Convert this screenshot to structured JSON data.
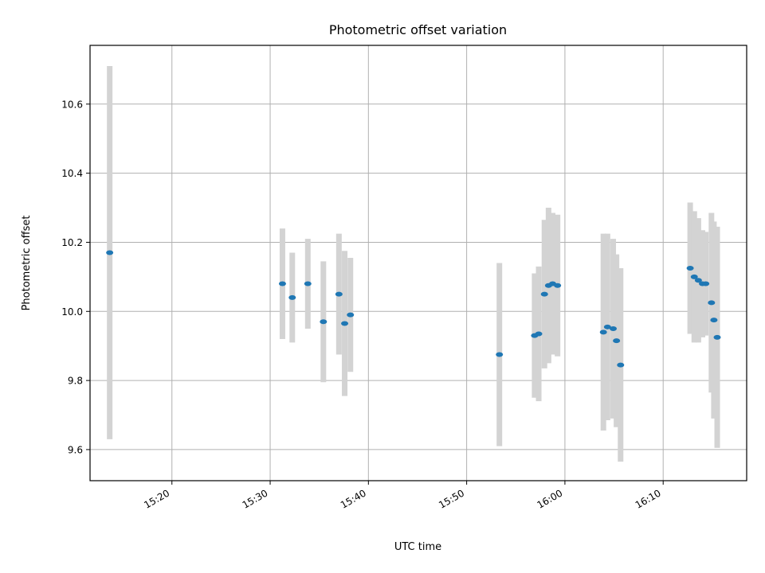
{
  "chart_data": {
    "type": "scatter",
    "title": "Photometric offset variation",
    "xlabel": "UTC time",
    "ylabel": "Photometric offset",
    "x_ticks": [
      "15:20",
      "15:30",
      "15:40",
      "15:50",
      "16:00",
      "16:10"
    ],
    "y_ticks": [
      "9.6",
      "9.8",
      "10.0",
      "10.2",
      "10.4",
      "10.6"
    ],
    "xlim": [
      "15:11:40",
      "16:18:30"
    ],
    "ylim": [
      9.51,
      10.77
    ],
    "grid": true,
    "marker_color": "#1f77b4",
    "errorbar_color": "#d3d3d3",
    "points": [
      {
        "t": "15:13:40",
        "y": 10.17,
        "err": 0.54
      },
      {
        "t": "15:31:15",
        "y": 10.08,
        "err": 0.16
      },
      {
        "t": "15:32:15",
        "y": 10.04,
        "err": 0.13
      },
      {
        "t": "15:33:50",
        "y": 10.08,
        "err": 0.13
      },
      {
        "t": "15:35:25",
        "y": 9.97,
        "err": 0.175
      },
      {
        "t": "15:37:00",
        "y": 10.05,
        "err": 0.175
      },
      {
        "t": "15:37:35",
        "y": 9.965,
        "err": 0.21
      },
      {
        "t": "15:38:10",
        "y": 9.99,
        "err": 0.165
      },
      {
        "t": "15:53:20",
        "y": 9.875,
        "err": 0.265
      },
      {
        "t": "15:56:55",
        "y": 9.93,
        "err": 0.18
      },
      {
        "t": "15:57:20",
        "y": 9.935,
        "err": 0.195
      },
      {
        "t": "15:57:55",
        "y": 10.05,
        "err": 0.215
      },
      {
        "t": "15:58:20",
        "y": 10.075,
        "err": 0.225
      },
      {
        "t": "15:58:45",
        "y": 10.08,
        "err": 0.205
      },
      {
        "t": "15:59:15",
        "y": 10.075,
        "err": 0.205
      },
      {
        "t": "16:03:55",
        "y": 9.94,
        "err": 0.285
      },
      {
        "t": "16:04:20",
        "y": 9.955,
        "err": 0.27
      },
      {
        "t": "16:04:55",
        "y": 9.95,
        "err": 0.26
      },
      {
        "t": "16:05:15",
        "y": 9.915,
        "err": 0.25
      },
      {
        "t": "16:05:40",
        "y": 9.845,
        "err": 0.28
      },
      {
        "t": "16:12:45",
        "y": 10.125,
        "err": 0.19
      },
      {
        "t": "16:13:10",
        "y": 10.1,
        "err": 0.19
      },
      {
        "t": "16:13:35",
        "y": 10.09,
        "err": 0.18
      },
      {
        "t": "16:14:00",
        "y": 10.08,
        "err": 0.155
      },
      {
        "t": "16:14:20",
        "y": 10.08,
        "err": 0.15
      },
      {
        "t": "16:14:55",
        "y": 10.025,
        "err": 0.26
      },
      {
        "t": "16:15:10",
        "y": 9.975,
        "err": 0.285
      },
      {
        "t": "16:15:30",
        "y": 9.925,
        "err": 0.32
      }
    ]
  }
}
